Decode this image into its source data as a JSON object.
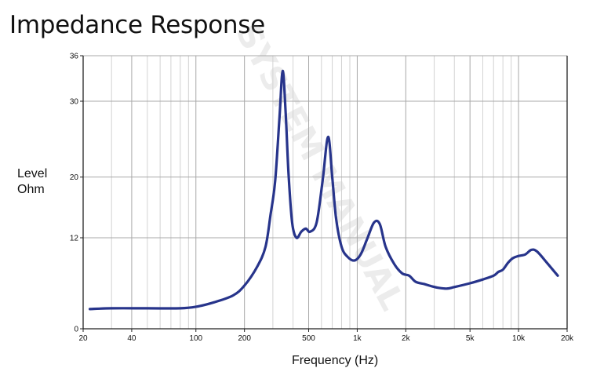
{
  "chart_data": {
    "type": "line",
    "title": "Impedance Response",
    "xlabel": "Frequency (Hz)",
    "ylabel_lines": [
      "Level",
      "Ohm"
    ],
    "x_scale": "log",
    "xlim": [
      20,
      20000
    ],
    "ylim": [
      0,
      36
    ],
    "grid": true,
    "y_ticks": [
      {
        "value": 0,
        "label": "0"
      },
      {
        "value": 12,
        "label": "12"
      },
      {
        "value": 20,
        "label": "20"
      },
      {
        "value": 30,
        "label": "30"
      },
      {
        "value": 36,
        "label": "36"
      }
    ],
    "x_ticks": [
      {
        "value": 20,
        "label": "20"
      },
      {
        "value": 40,
        "label": "40"
      },
      {
        "value": 100,
        "label": "100"
      },
      {
        "value": 200,
        "label": "200"
      },
      {
        "value": 500,
        "label": "500"
      },
      {
        "value": 1000,
        "label": "1k"
      },
      {
        "value": 2000,
        "label": "2k"
      },
      {
        "value": 5000,
        "label": "5k"
      },
      {
        "value": 10000,
        "label": "10k"
      },
      {
        "value": 20000,
        "label": "20k"
      }
    ],
    "series": [
      {
        "color": "#27348b",
        "points": [
          [
            22,
            2.6
          ],
          [
            30,
            2.7
          ],
          [
            50,
            2.7
          ],
          [
            80,
            2.7
          ],
          [
            100,
            2.9
          ],
          [
            130,
            3.5
          ],
          [
            170,
            4.4
          ],
          [
            200,
            5.7
          ],
          [
            240,
            8.2
          ],
          [
            270,
            10.8
          ],
          [
            290,
            15.0
          ],
          [
            310,
            19.5
          ],
          [
            330,
            28.0
          ],
          [
            345,
            34.0
          ],
          [
            360,
            28.5
          ],
          [
            375,
            20.5
          ],
          [
            395,
            14.0
          ],
          [
            420,
            12.0
          ],
          [
            450,
            12.8
          ],
          [
            480,
            13.2
          ],
          [
            510,
            12.8
          ],
          [
            560,
            14.0
          ],
          [
            610,
            19.5
          ],
          [
            660,
            25.3
          ],
          [
            700,
            20.0
          ],
          [
            740,
            14.5
          ],
          [
            800,
            10.8
          ],
          [
            870,
            9.5
          ],
          [
            960,
            9.0
          ],
          [
            1050,
            9.8
          ],
          [
            1150,
            11.8
          ],
          [
            1270,
            14.0
          ],
          [
            1380,
            13.8
          ],
          [
            1500,
            10.8
          ],
          [
            1700,
            8.5
          ],
          [
            1900,
            7.3
          ],
          [
            2100,
            7.0
          ],
          [
            2300,
            6.2
          ],
          [
            2600,
            5.9
          ],
          [
            2900,
            5.6
          ],
          [
            3200,
            5.4
          ],
          [
            3600,
            5.3
          ],
          [
            4000,
            5.5
          ],
          [
            5000,
            6.0
          ],
          [
            6000,
            6.5
          ],
          [
            7000,
            7.0
          ],
          [
            7500,
            7.5
          ],
          [
            8000,
            7.8
          ],
          [
            8600,
            8.7
          ],
          [
            9200,
            9.3
          ],
          [
            10000,
            9.6
          ],
          [
            11000,
            9.8
          ],
          [
            12000,
            10.4
          ],
          [
            13000,
            10.2
          ],
          [
            15000,
            8.7
          ],
          [
            17500,
            7.0
          ]
        ]
      }
    ],
    "watermark": "SYSTEM MANUAL"
  }
}
